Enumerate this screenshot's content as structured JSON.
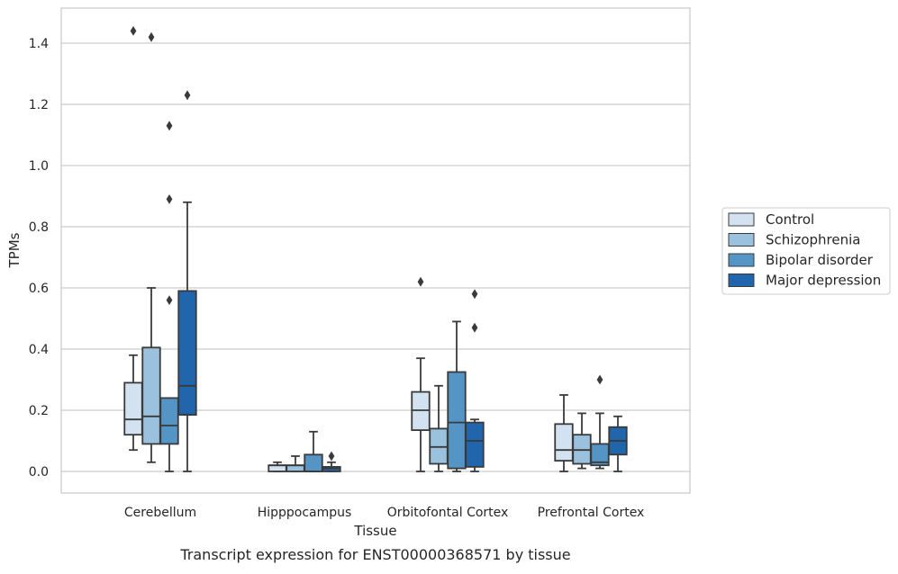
{
  "chart_data": {
    "type": "box",
    "title": "",
    "caption": "Transcript expression for ENST00000368571 by tissue",
    "xlabel": "Tissue",
    "ylabel": "TPMs",
    "ylim": [
      -0.07,
      1.52
    ],
    "yticks": [
      "0.0",
      "0.2",
      "0.4",
      "0.6",
      "0.8",
      "1.0",
      "1.2",
      "1.4"
    ],
    "grid": "horizontal",
    "legend_position": "right",
    "categories": [
      "Cerebellum",
      "Hipppocampus",
      "Orbitofontal Cortex",
      "Prefrontal Cortex"
    ],
    "series": [
      {
        "name": "Control",
        "color": "#d3e2f1",
        "boxes": [
          {
            "q1": 0.12,
            "median": 0.17,
            "q3": 0.29,
            "whislo": 0.07,
            "whishi": 0.38,
            "fliers": [
              1.44
            ]
          },
          {
            "q1": 0.0,
            "median": 0.02,
            "q3": 0.02,
            "whislo": 0.0,
            "whishi": 0.03,
            "fliers": []
          },
          {
            "q1": 0.135,
            "median": 0.2,
            "q3": 0.26,
            "whislo": 0.0,
            "whishi": 0.37,
            "fliers": [
              0.62
            ]
          },
          {
            "q1": 0.035,
            "median": 0.07,
            "q3": 0.155,
            "whislo": 0.0,
            "whishi": 0.25,
            "fliers": []
          }
        ]
      },
      {
        "name": "Schizophrenia",
        "color": "#9ac1dd",
        "boxes": [
          {
            "q1": 0.09,
            "median": 0.18,
            "q3": 0.405,
            "whislo": 0.03,
            "whishi": 0.6,
            "fliers": [
              1.42
            ]
          },
          {
            "q1": 0.0,
            "median": 0.02,
            "q3": 0.02,
            "whislo": 0.0,
            "whishi": 0.05,
            "fliers": []
          },
          {
            "q1": 0.025,
            "median": 0.08,
            "q3": 0.14,
            "whislo": 0.0,
            "whishi": 0.28,
            "fliers": []
          },
          {
            "q1": 0.025,
            "median": 0.07,
            "q3": 0.12,
            "whislo": 0.01,
            "whishi": 0.19,
            "fliers": []
          }
        ]
      },
      {
        "name": "Bipolar disorder",
        "color": "#5495c6",
        "boxes": [
          {
            "q1": 0.09,
            "median": 0.15,
            "q3": 0.24,
            "whislo": 0.0,
            "whishi": 0.24,
            "fliers": [
              0.56,
              0.89,
              1.13
            ]
          },
          {
            "q1": 0.0,
            "median": 0.0,
            "q3": 0.055,
            "whislo": 0.0,
            "whishi": 0.13,
            "fliers": []
          },
          {
            "q1": 0.01,
            "median": 0.16,
            "q3": 0.325,
            "whislo": 0.0,
            "whishi": 0.49,
            "fliers": []
          },
          {
            "q1": 0.02,
            "median": 0.03,
            "q3": 0.09,
            "whislo": 0.01,
            "whishi": 0.19,
            "fliers": [
              0.3
            ]
          }
        ]
      },
      {
        "name": "Major depression",
        "color": "#2166ac",
        "boxes": [
          {
            "q1": 0.185,
            "median": 0.28,
            "q3": 0.59,
            "whislo": 0.0,
            "whishi": 0.88,
            "fliers": [
              1.23
            ]
          },
          {
            "q1": 0.0,
            "median": 0.01,
            "q3": 0.015,
            "whislo": 0.0,
            "whishi": 0.03,
            "fliers": [
              0.05
            ]
          },
          {
            "q1": 0.015,
            "median": 0.1,
            "q3": 0.16,
            "whislo": 0.0,
            "whishi": 0.17,
            "fliers": [
              0.47,
              0.58
            ]
          },
          {
            "q1": 0.055,
            "median": 0.1,
            "q3": 0.145,
            "whislo": 0.0,
            "whishi": 0.18,
            "fliers": []
          }
        ]
      }
    ]
  }
}
